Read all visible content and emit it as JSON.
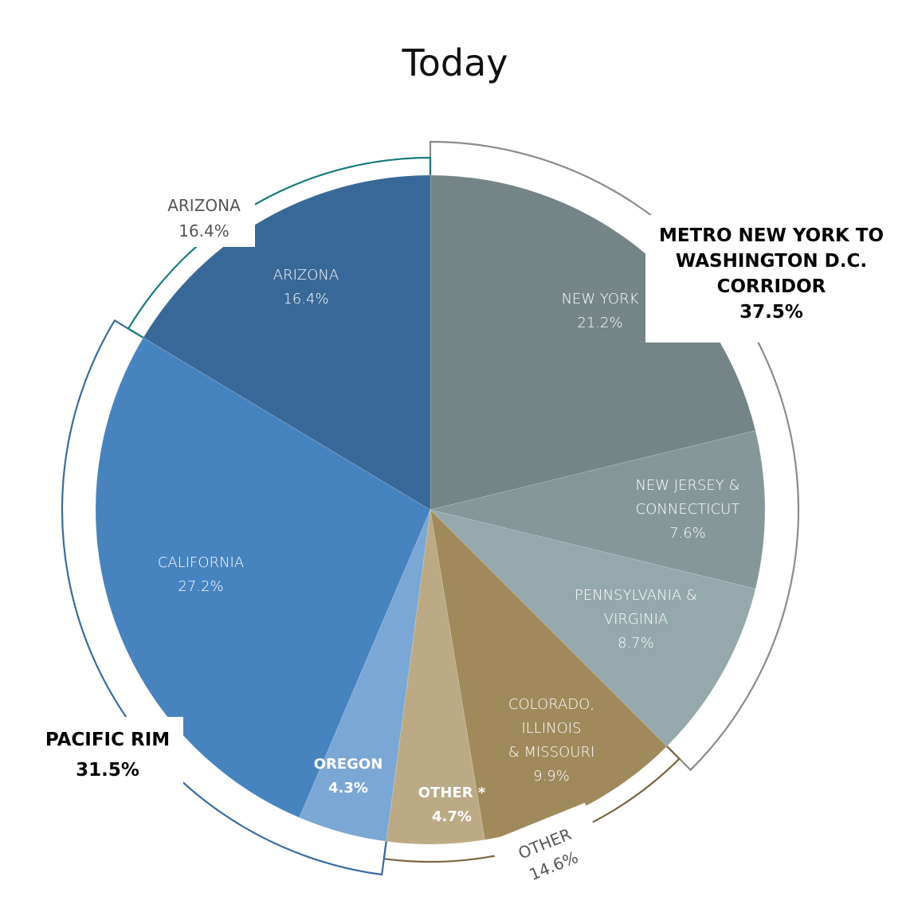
{
  "title": "Today",
  "colors": {
    "new_york": "#758587",
    "nj_ct": "#869799",
    "pa_va": "#95a8ab",
    "co_il_mo": "#a08a5c",
    "other_star": "#bbaa84",
    "oregon": "#7ba7d4",
    "california": "#4783bf",
    "arizona": "#386897",
    "bracket_metro": "#8c8c8c",
    "bracket_pacific": "#3a6b9f",
    "bracket_arizona": "#1a7a7a",
    "bracket_other": "#7a6641"
  },
  "slices": [
    {
      "label_lines": [
        "NEW YORK"
      ],
      "value": "21.2%"
    },
    {
      "label_lines": [
        "NEW JERSEY &",
        "CONNECTICUT"
      ],
      "value": "7.6%"
    },
    {
      "label_lines": [
        "PENNSYLVANIA &",
        "VIRGINIA"
      ],
      "value": "8.7%"
    },
    {
      "label_lines": [
        "COLORADO,",
        "ILLINOIS",
        "& MISSOURI"
      ],
      "value": "9.9%"
    },
    {
      "label_lines": [
        "OTHER *"
      ],
      "value": "4.7%"
    },
    {
      "label_lines": [
        "OREGON"
      ],
      "value": "4.3%"
    },
    {
      "label_lines": [
        "CALIFORNIA"
      ],
      "value": "27.2%"
    },
    {
      "label_lines": [
        "ARIZONA"
      ],
      "value": "16.4%"
    }
  ],
  "groups": {
    "metro": {
      "lines": [
        "METRO NEW YORK TO",
        "WASHINGTON D.C.",
        "CORRIDOR"
      ],
      "value": "37.5%"
    },
    "pacific": {
      "lines": [
        "PACIFIC RIM"
      ],
      "value": "31.5%"
    },
    "arizona": {
      "lines": [
        "ARIZONA"
      ],
      "value": "16.4%"
    },
    "other": {
      "lines": [
        "OTHER"
      ],
      "value": "14.6%"
    }
  },
  "chart_data": {
    "type": "pie",
    "title": "Today",
    "categories": [
      "New York",
      "New Jersey & Connecticut",
      "Pennsylvania & Virginia",
      "Colorado, Illinois & Missouri",
      "Other *",
      "Oregon",
      "California",
      "Arizona"
    ],
    "values": [
      21.2,
      7.6,
      8.7,
      9.9,
      4.7,
      4.3,
      27.2,
      16.4
    ],
    "unit": "%",
    "start_angle": "12 o'clock, clockwise",
    "groups": [
      {
        "name": "Metro New York to Washington D.C. Corridor",
        "value": 37.5,
        "members": [
          "New York",
          "New Jersey & Connecticut",
          "Pennsylvania & Virginia"
        ]
      },
      {
        "name": "Other",
        "value": 14.6,
        "members": [
          "Colorado, Illinois & Missouri",
          "Other *"
        ]
      },
      {
        "name": "Pacific Rim",
        "value": 31.5,
        "members": [
          "Oregon",
          "California"
        ]
      },
      {
        "name": "Arizona",
        "value": 16.4,
        "members": [
          "Arizona"
        ]
      }
    ]
  }
}
